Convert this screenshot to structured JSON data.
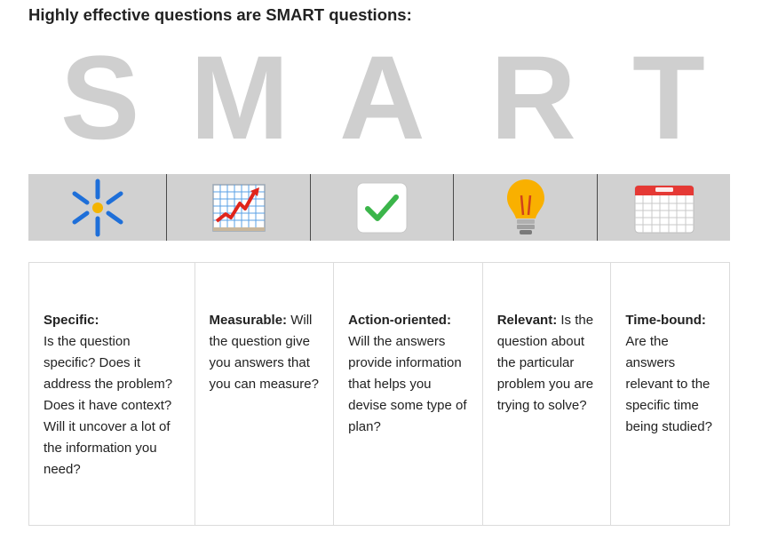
{
  "heading": "Highly effective questions are SMART questions:",
  "letters": [
    "S",
    "M",
    "A",
    "R",
    "T"
  ],
  "icons": [
    {
      "name": "sparkle-icon"
    },
    {
      "name": "chart-increasing-icon"
    },
    {
      "name": "check-mark-icon"
    },
    {
      "name": "light-bulb-icon"
    },
    {
      "name": "calendar-icon"
    }
  ],
  "columns": [
    {
      "term": "Specific:",
      "text": "Is the question specific? Does it address the problem? Does it have context? Will it uncover a lot of the information you need?",
      "term_on_own_line": true
    },
    {
      "term": "Measurable:",
      "text": "Will the question give you answers that you can measure?",
      "term_on_own_line": false
    },
    {
      "term": "Action-oriented:",
      "text": "Will the answers provide information that helps you devise some type of plan?",
      "term_on_own_line": true
    },
    {
      "term": "Relevant:",
      "text": "Is the question about the particular problem you are trying to solve?",
      "term_on_own_line": false
    },
    {
      "term": "Time-bound:",
      "text": "Are the answers relevant to the specific time being studied?",
      "term_on_own_line": true
    }
  ],
  "colors": {
    "letter": "#cfcfcf",
    "strip": "#d1d1d1",
    "sparkle_blue": "#1e6fd9",
    "sparkle_center": "#f4b400",
    "chart_line": "#e0241b",
    "check_green": "#3bb54a",
    "bulb_yellow": "#f9b000",
    "calendar_red": "#e53935"
  }
}
